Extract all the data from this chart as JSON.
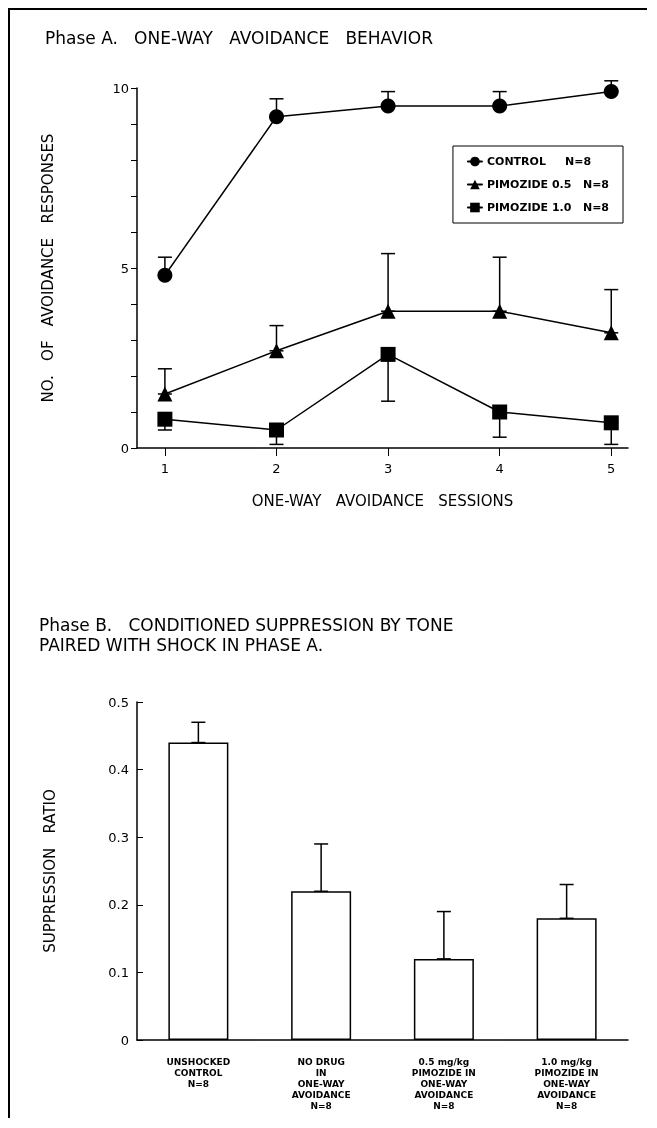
{
  "chart_data": [
    {
      "type": "line",
      "title": "Phase A.   ONE-WAY   AVOIDANCE   BEHAVIOR",
      "xlabel": "ONE-WAY   AVOIDANCE   SESSIONS",
      "ylabel": "NO.   OF   AVOIDANCE   RESPONSES",
      "x": [
        1,
        2,
        3,
        4,
        5
      ],
      "xlim": [
        0.75,
        5.15
      ],
      "xticks": [
        1,
        2,
        3,
        4,
        5
      ],
      "ylim": [
        0,
        10
      ],
      "yticks": [
        0,
        {
          "value": 1,
          "label": null
        },
        {
          "value": 2,
          "label": null
        },
        {
          "value": 3,
          "label": null
        },
        {
          "value": 4,
          "label": null
        },
        5,
        {
          "value": 6,
          "label": null
        },
        {
          "value": 7,
          "label": null
        },
        {
          "value": 8,
          "label": null
        },
        {
          "value": 9,
          "label": null
        },
        10
      ],
      "grid": false,
      "legend": "top right",
      "line_style": "solid",
      "series": [
        {
          "name": "CONTROL     N=8",
          "color": "#000000",
          "marker": "circle",
          "values": [
            4.8,
            9.2,
            9.5,
            9.5,
            9.9
          ],
          "errors": [
            [
              4.8,
              5.3
            ],
            [
              9.2,
              9.7
            ],
            [
              9.5,
              9.9
            ],
            [
              9.5,
              9.9
            ],
            [
              9.9,
              10.2
            ]
          ]
        },
        {
          "name": "PIMOZIDE 0.5   N=8",
          "color": "#000000",
          "marker": "triangle",
          "values": [
            1.5,
            2.7,
            3.8,
            3.8,
            3.2
          ],
          "errors": [
            [
              1.5,
              2.2
            ],
            [
              2.7,
              3.4
            ],
            [
              3.8,
              5.4
            ],
            [
              3.8,
              5.3
            ],
            [
              3.2,
              4.4
            ]
          ]
        },
        {
          "name": "PIMOZIDE 1.0   N=8",
          "color": "#000000",
          "marker": "square",
          "values": [
            0.8,
            0.5,
            2.6,
            1.0,
            0.7
          ],
          "errors": [
            [
              0.5,
              0.8
            ],
            [
              0.1,
              0.5
            ],
            [
              1.3,
              2.6
            ],
            [
              0.3,
              1.0
            ],
            [
              0.1,
              0.7
            ]
          ]
        }
      ]
    },
    {
      "type": "bar",
      "title": "Phase B.   CONDITIONED SUPPRESSION BY TONE\nPAIRED WITH SHOCK IN PHASE A.",
      "ylabel": "SUPPRESSION   RATIO",
      "categories": [
        "UNSHOCKED\nCONTROL\nN=8",
        "NO DRUG\nIN\nONE-WAY\nAVOIDANCE\nN=8",
        "0.5 mg/kg\nPIMOZIDE IN\nONE-WAY\nAVOIDANCE\nN=8",
        "1.0 mg/kg\nPIMOZIDE IN\nONE-WAY\nAVOIDANCE\nN=8"
      ],
      "ylim": [
        0,
        0.5
      ],
      "yticks": [
        0,
        0.1,
        0.2,
        0.3,
        0.4,
        0.5
      ],
      "grid": false,
      "legend": false,
      "series": [
        {
          "color": "#ffffff",
          "values": [
            0.44,
            0.22,
            0.12,
            0.18
          ],
          "errors": [
            [
              0.44,
              0.47
            ],
            [
              0.22,
              0.29
            ],
            [
              0.12,
              0.19
            ],
            [
              0.18,
              0.23
            ]
          ]
        }
      ]
    }
  ]
}
